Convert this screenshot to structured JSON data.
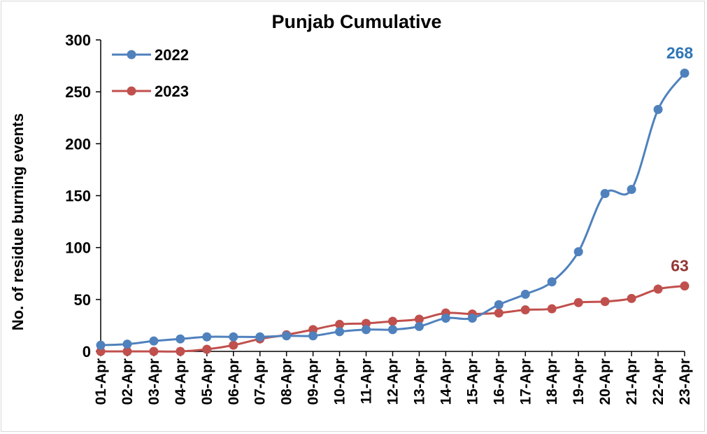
{
  "chart_data": {
    "type": "line",
    "title": "Punjab Cumulative",
    "xlabel": "",
    "ylabel": "No. of residue burning events",
    "ylim": [
      0,
      300
    ],
    "yticks": [
      0,
      50,
      100,
      150,
      200,
      250,
      300
    ],
    "grid": false,
    "legend_position": "top-left",
    "categories": [
      "01-Apr",
      "02-Apr",
      "03-Apr",
      "04-Apr",
      "05-Apr",
      "06-Apr",
      "07-Apr",
      "08-Apr",
      "09-Apr",
      "10-Apr",
      "11-Apr",
      "12-Apr",
      "13-Apr",
      "14-Apr",
      "15-Apr",
      "16-Apr",
      "17-Apr",
      "18-Apr",
      "19-Apr",
      "20-Apr",
      "21-Apr",
      "22-Apr",
      "23-Apr"
    ],
    "series": [
      {
        "name": "2022",
        "color": "#4f81bd",
        "label_color": "#2f75b6",
        "values": [
          6,
          7,
          10,
          12,
          14,
          14,
          14,
          15,
          15,
          19,
          21,
          21,
          24,
          32,
          32,
          45,
          55,
          67,
          96,
          152,
          156,
          233,
          268
        ],
        "end_label": "268"
      },
      {
        "name": "2023",
        "color": "#c0504d",
        "label_color": "#953735",
        "values": [
          0,
          0,
          0,
          0,
          2,
          6,
          12,
          16,
          21,
          26,
          27,
          29,
          31,
          37,
          36,
          37,
          40,
          41,
          47,
          48,
          51,
          60,
          63
        ],
        "end_label": "63"
      }
    ]
  }
}
